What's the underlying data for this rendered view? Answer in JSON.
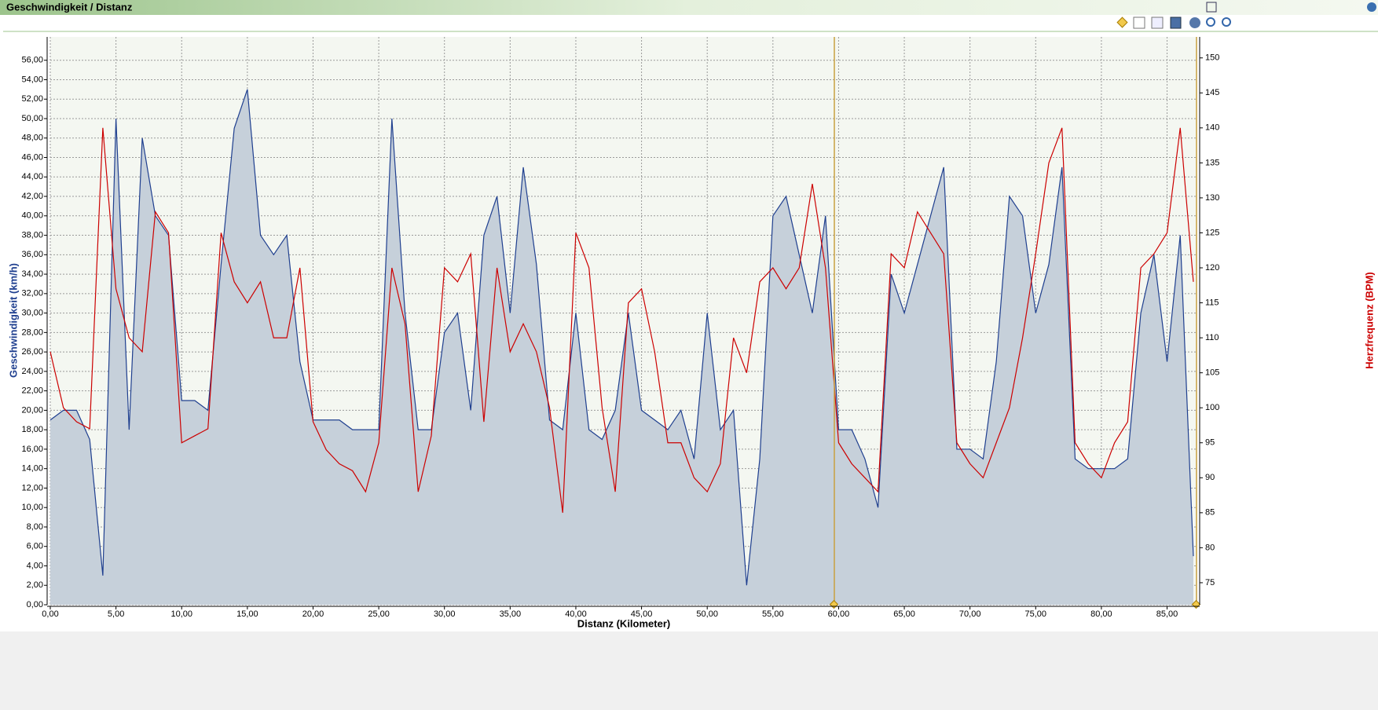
{
  "chart_data": {
    "type": "line",
    "title": "Geschwindigkeit / Distanz",
    "x_label": "Distanz (Kilometer)",
    "y_label": "Geschwindigkeit (km/h)",
    "y2_label": "Herzfrequenz (BPM)",
    "grid": true,
    "x": [
      0,
      1,
      2,
      3,
      4,
      5,
      6,
      7,
      8,
      9,
      10,
      11,
      12,
      13,
      14,
      15,
      16,
      17,
      18,
      19,
      20,
      21,
      22,
      23,
      24,
      25,
      26,
      27,
      28,
      29,
      30,
      31,
      32,
      33,
      34,
      35,
      36,
      37,
      38,
      39,
      40,
      41,
      42,
      43,
      44,
      45,
      46,
      47,
      48,
      49,
      50,
      51,
      52,
      53,
      54,
      55,
      56,
      57,
      58,
      59,
      60,
      61,
      62,
      63,
      64,
      65,
      66,
      67,
      68,
      69,
      70,
      71,
      72,
      73,
      74,
      75,
      76,
      77,
      78,
      79,
      80,
      81,
      82,
      83,
      84,
      85,
      86,
      87
    ],
    "xlim": [
      0,
      87.3
    ],
    "xticks": [
      {
        "value": 0,
        "label": "0,00"
      },
      {
        "value": 5,
        "label": "5,00"
      },
      {
        "value": 10,
        "label": "10,00"
      },
      {
        "value": 15,
        "label": "15,00"
      },
      {
        "value": 20,
        "label": "20,00"
      },
      {
        "value": 25,
        "label": "25,00"
      },
      {
        "value": 30,
        "label": "30,00"
      },
      {
        "value": 35,
        "label": "35,00"
      },
      {
        "value": 40,
        "label": "40,00"
      },
      {
        "value": 45,
        "label": "45,00"
      },
      {
        "value": 50,
        "label": "50,00"
      },
      {
        "value": 55,
        "label": "55,00"
      },
      {
        "value": 60,
        "label": "60,00"
      },
      {
        "value": 65,
        "label": "65,00"
      },
      {
        "value": 70,
        "label": "70,00"
      },
      {
        "value": 75,
        "label": "75,00"
      },
      {
        "value": 80,
        "label": "80,00"
      },
      {
        "value": 85,
        "label": "85,00"
      }
    ],
    "ylim": [
      0,
      58.4
    ],
    "yticks": [
      {
        "value": 0,
        "label": "0,00"
      },
      {
        "value": 2,
        "label": "2,00"
      },
      {
        "value": 4,
        "label": "4,00"
      },
      {
        "value": 6,
        "label": "6,00"
      },
      {
        "value": 8,
        "label": "8,00"
      },
      {
        "value": 10,
        "label": "10,00"
      },
      {
        "value": 12,
        "label": "12,00"
      },
      {
        "value": 14,
        "label": "14,00"
      },
      {
        "value": 16,
        "label": "16,00"
      },
      {
        "value": 18,
        "label": "18,00"
      },
      {
        "value": 20,
        "label": "20,00"
      },
      {
        "value": 22,
        "label": "22,00"
      },
      {
        "value": 24,
        "label": "24,00"
      },
      {
        "value": 26,
        "label": "26,00"
      },
      {
        "value": 28,
        "label": "28,00"
      },
      {
        "value": 30,
        "label": "30,00"
      },
      {
        "value": 32,
        "label": "32,00"
      },
      {
        "value": 34,
        "label": "34,00"
      },
      {
        "value": 36,
        "label": "36,00"
      },
      {
        "value": 38,
        "label": "38,00"
      },
      {
        "value": 40,
        "label": "40,00"
      },
      {
        "value": 42,
        "label": "42,00"
      },
      {
        "value": 44,
        "label": "44,00"
      },
      {
        "value": 46,
        "label": "46,00"
      },
      {
        "value": 48,
        "label": "48,00"
      },
      {
        "value": 50,
        "label": "50,00"
      },
      {
        "value": 52,
        "label": "52,00"
      },
      {
        "value": 54,
        "label": "54,00"
      },
      {
        "value": 56,
        "label": "56,00"
      }
    ],
    "y2lim": [
      71.85,
      153
    ],
    "y2ticks": [
      75,
      80,
      85,
      90,
      95,
      100,
      105,
      110,
      115,
      120,
      125,
      130,
      135,
      140,
      145,
      150
    ],
    "series": [
      {
        "color": "#1f3f8f",
        "fill": "#c6d0da",
        "values": [
          19,
          20,
          20,
          17,
          3,
          50,
          18,
          48,
          40,
          38,
          21,
          21,
          20,
          35,
          49,
          53,
          38,
          36,
          38,
          25,
          19,
          19,
          19,
          18,
          18,
          18,
          50,
          30,
          18,
          18,
          28,
          30,
          20,
          38,
          42,
          30,
          45,
          35,
          19,
          18,
          30,
          18,
          17,
          20,
          30,
          20,
          19,
          18,
          20,
          15,
          30,
          18,
          20,
          2,
          15,
          40,
          42,
          36,
          30,
          40,
          18,
          18,
          15,
          10,
          34,
          30,
          35,
          40,
          45,
          16,
          16,
          15,
          25,
          42,
          40,
          30,
          35,
          45,
          15,
          14,
          14,
          14,
          15,
          30,
          36,
          25,
          38,
          5
        ]
      },
      {
        "color": "#cc0000",
        "axis": "y2",
        "values": [
          108,
          100,
          98,
          97,
          140,
          117,
          110,
          108,
          128,
          125,
          95,
          96,
          97,
          125,
          118,
          115,
          118,
          110,
          110,
          120,
          98,
          94,
          92,
          91,
          88,
          95,
          120,
          112,
          88,
          96,
          120,
          118,
          122,
          98,
          120,
          108,
          112,
          108,
          100,
          85,
          125,
          120,
          100,
          88,
          115,
          117,
          108,
          95,
          95,
          90,
          88,
          92,
          110,
          105,
          118,
          120,
          117,
          120,
          132,
          120,
          95,
          92,
          90,
          88,
          122,
          120,
          128,
          125,
          122,
          95,
          92,
          90,
          95,
          100,
          110,
          122,
          135,
          140,
          95,
          92,
          90,
          95,
          98,
          120,
          122,
          125,
          140,
          118
        ]
      }
    ]
  }
}
